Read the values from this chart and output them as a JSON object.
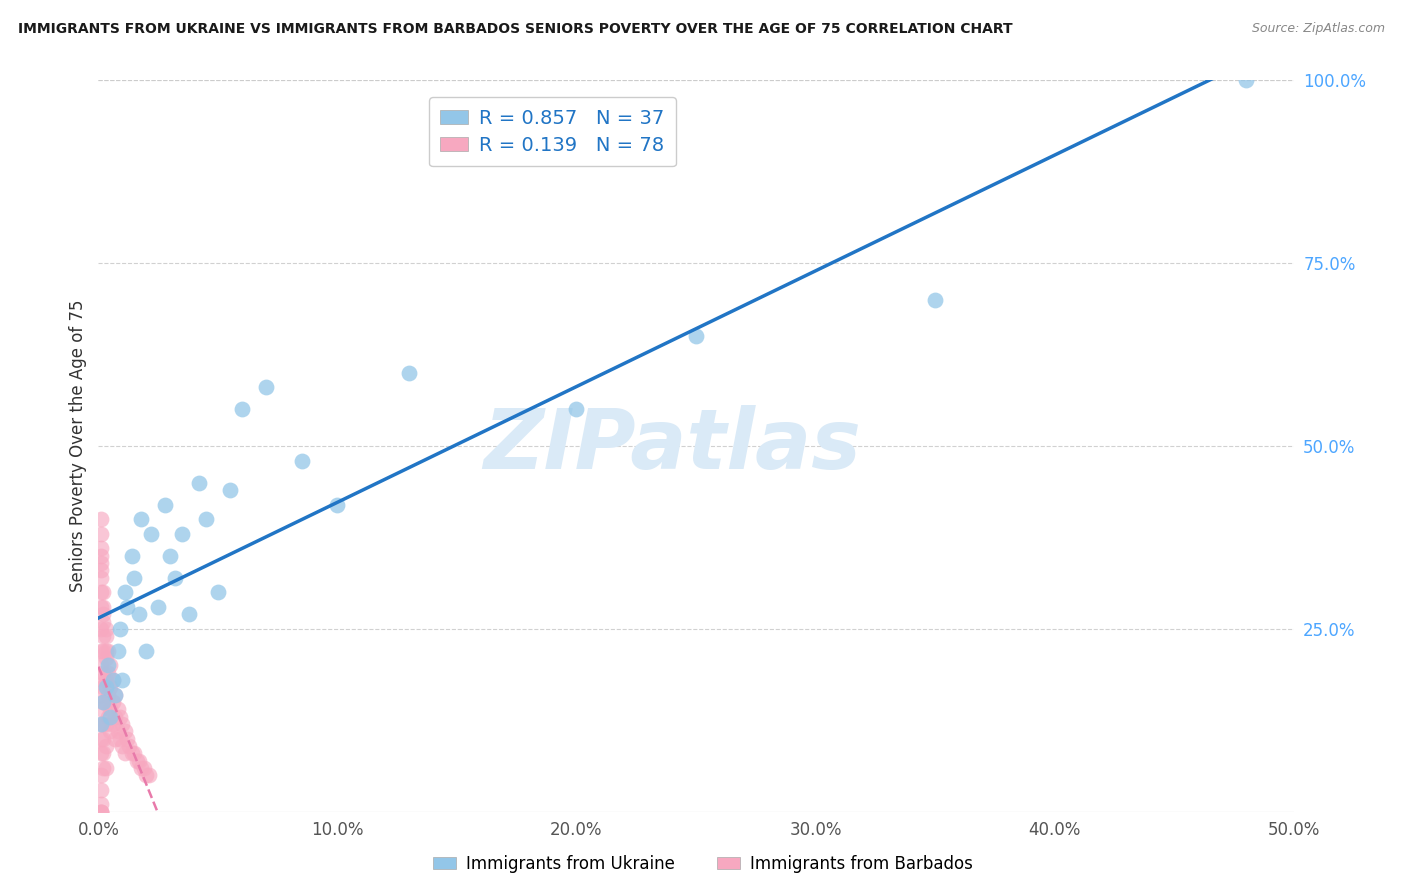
{
  "title": "IMMIGRANTS FROM UKRAINE VS IMMIGRANTS FROM BARBADOS SENIORS POVERTY OVER THE AGE OF 75 CORRELATION CHART",
  "source": "Source: ZipAtlas.com",
  "ylabel": "Seniors Poverty Over the Age of 75",
  "xlim": [
    0,
    0.5
  ],
  "ylim": [
    0,
    1.0
  ],
  "xtick_vals": [
    0,
    0.1,
    0.2,
    0.3,
    0.4,
    0.5
  ],
  "xtick_labels": [
    "0.0%",
    "10.0%",
    "20.0%",
    "30.0%",
    "40.0%",
    "50.0%"
  ],
  "ytick_vals_right": [
    0.25,
    0.5,
    0.75,
    1.0
  ],
  "ytick_labels_right": [
    "25.0%",
    "50.0%",
    "75.0%",
    "100.0%"
  ],
  "ukraine_color": "#93c6e8",
  "barbados_color": "#f7a8c0",
  "ukraine_line_color": "#2175c5",
  "barbados_line_color": "#e87aaa",
  "ukraine_R": 0.857,
  "ukraine_N": 37,
  "barbados_R": 0.139,
  "barbados_N": 78,
  "watermark": "ZIPatlas",
  "watermark_color": "#daeaf7",
  "legend_label_ukraine": "Immigrants from Ukraine",
  "legend_label_barbados": "Immigrants from Barbados",
  "legend_text_color": "#2175c5",
  "ukraine_x": [
    0.001,
    0.002,
    0.003,
    0.004,
    0.005,
    0.006,
    0.007,
    0.008,
    0.009,
    0.01,
    0.011,
    0.012,
    0.014,
    0.015,
    0.017,
    0.018,
    0.02,
    0.022,
    0.025,
    0.028,
    0.03,
    0.032,
    0.035,
    0.038,
    0.042,
    0.045,
    0.05,
    0.055,
    0.06,
    0.07,
    0.085,
    0.1,
    0.13,
    0.2,
    0.25,
    0.35,
    0.48
  ],
  "ukraine_y": [
    0.12,
    0.15,
    0.17,
    0.2,
    0.13,
    0.18,
    0.16,
    0.22,
    0.25,
    0.18,
    0.3,
    0.28,
    0.35,
    0.32,
    0.27,
    0.4,
    0.22,
    0.38,
    0.28,
    0.42,
    0.35,
    0.32,
    0.38,
    0.27,
    0.45,
    0.4,
    0.3,
    0.44,
    0.55,
    0.58,
    0.48,
    0.42,
    0.6,
    0.55,
    0.65,
    0.7,
    1.0
  ],
  "barbados_x": [
    0.001,
    0.001,
    0.001,
    0.001,
    0.001,
    0.001,
    0.001,
    0.001,
    0.001,
    0.001,
    0.001,
    0.001,
    0.001,
    0.001,
    0.001,
    0.001,
    0.001,
    0.001,
    0.001,
    0.001,
    0.002,
    0.002,
    0.002,
    0.002,
    0.002,
    0.002,
    0.002,
    0.002,
    0.002,
    0.002,
    0.002,
    0.003,
    0.003,
    0.003,
    0.003,
    0.003,
    0.003,
    0.003,
    0.004,
    0.004,
    0.004,
    0.004,
    0.005,
    0.005,
    0.005,
    0.005,
    0.006,
    0.006,
    0.006,
    0.007,
    0.007,
    0.007,
    0.008,
    0.008,
    0.009,
    0.009,
    0.01,
    0.01,
    0.011,
    0.011,
    0.012,
    0.013,
    0.014,
    0.015,
    0.016,
    0.017,
    0.018,
    0.019,
    0.02,
    0.021,
    0.001,
    0.001,
    0.001,
    0.001,
    0.002,
    0.002,
    0.003,
    0.003
  ],
  "barbados_y": [
    0.36,
    0.34,
    0.32,
    0.3,
    0.28,
    0.25,
    0.22,
    0.2,
    0.18,
    0.16,
    0.14,
    0.12,
    0.1,
    0.08,
    0.05,
    0.03,
    0.01,
    0.0,
    0.0,
    0.0,
    0.28,
    0.26,
    0.24,
    0.22,
    0.19,
    0.17,
    0.15,
    0.12,
    0.1,
    0.08,
    0.06,
    0.24,
    0.21,
    0.18,
    0.15,
    0.12,
    0.09,
    0.06,
    0.22,
    0.19,
    0.16,
    0.13,
    0.2,
    0.17,
    0.14,
    0.11,
    0.18,
    0.15,
    0.12,
    0.16,
    0.13,
    0.1,
    0.14,
    0.11,
    0.13,
    0.1,
    0.12,
    0.09,
    0.11,
    0.08,
    0.1,
    0.09,
    0.08,
    0.08,
    0.07,
    0.07,
    0.06,
    0.06,
    0.05,
    0.05,
    0.4,
    0.38,
    0.35,
    0.33,
    0.3,
    0.27,
    0.25,
    0.22
  ]
}
